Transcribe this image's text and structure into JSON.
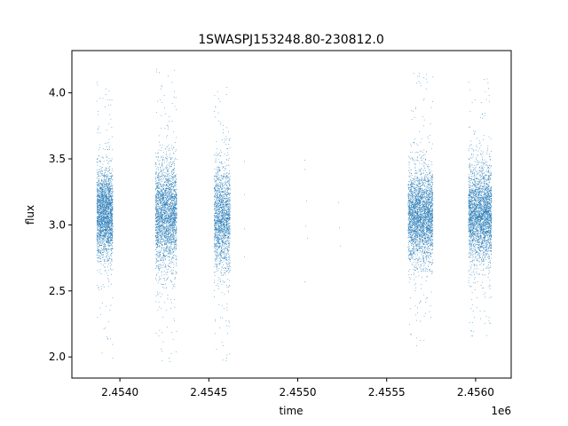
{
  "chart_data": {
    "type": "scatter",
    "title": "1SWASPJ153248.80-230812.0",
    "xlabel": "time",
    "ylabel": "flux",
    "x_offset_label": "1e6",
    "xlim": [
      2453730,
      2456200
    ],
    "ylim": [
      1.84,
      4.32
    ],
    "x_ticks": [
      2453900,
      2454150,
      2454400,
      2454650,
      2454900,
      2455150
    ],
    "x_tick_labels": [
      "2.4540",
      "2.4545",
      "2.4550",
      "2.4555",
      "2.4560"
    ],
    "x_tick_values": [
      2454000,
      2454500,
      2455000,
      2455500,
      2456000
    ],
    "y_tick_values": [
      2.0,
      2.5,
      3.0,
      3.5,
      4.0
    ],
    "y_tick_labels": [
      "2.0",
      "2.5",
      "3.0",
      "3.5",
      "4.0"
    ],
    "grid": false,
    "marker_color": "#1f77b4",
    "clusters": [
      {
        "x_start": 2453870,
        "x_end": 2453960,
        "n": 2400,
        "center": 3.08,
        "spread": 0.17,
        "min": 1.96,
        "max": 4.15
      },
      {
        "x_start": 2454200,
        "x_end": 2454320,
        "n": 2600,
        "center": 3.08,
        "spread": 0.2,
        "min": 1.96,
        "max": 4.2
      },
      {
        "x_start": 2454530,
        "x_end": 2454620,
        "n": 1800,
        "center": 3.06,
        "spread": 0.2,
        "min": 1.96,
        "max": 4.05
      },
      {
        "x_start": 2455620,
        "x_end": 2455760,
        "n": 3000,
        "center": 3.07,
        "spread": 0.17,
        "min": 2.08,
        "max": 4.2
      },
      {
        "x_start": 2455960,
        "x_end": 2456090,
        "n": 3000,
        "center": 3.08,
        "spread": 0.18,
        "min": 2.12,
        "max": 4.15
      }
    ],
    "sparse_points": [
      {
        "x": 2454700,
        "y": 3.48
      },
      {
        "x": 2454700,
        "y": 3.23
      },
      {
        "x": 2454700,
        "y": 2.97
      },
      {
        "x": 2454700,
        "y": 2.76
      },
      {
        "x": 2455040,
        "y": 3.49
      },
      {
        "x": 2455040,
        "y": 3.42
      },
      {
        "x": 2455050,
        "y": 3.18
      },
      {
        "x": 2455045,
        "y": 2.99
      },
      {
        "x": 2455055,
        "y": 2.9
      },
      {
        "x": 2455040,
        "y": 2.57
      },
      {
        "x": 2455230,
        "y": 3.17
      },
      {
        "x": 2455235,
        "y": 2.98
      },
      {
        "x": 2455240,
        "y": 2.84
      }
    ]
  }
}
